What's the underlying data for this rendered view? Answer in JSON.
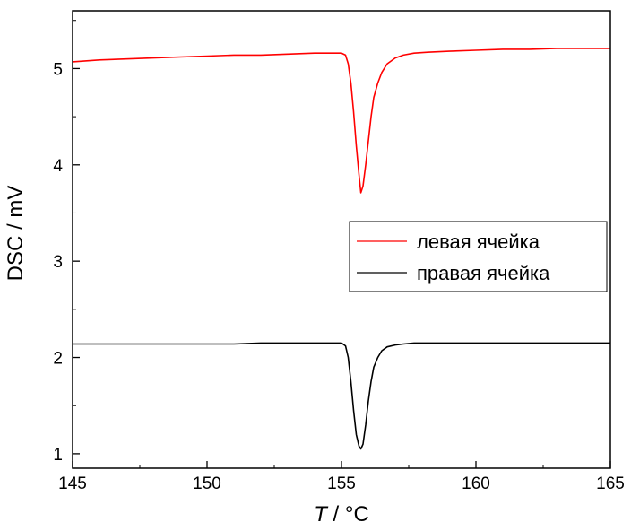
{
  "chart_data": {
    "type": "line",
    "xlabel_italic": "T",
    "xlabel_unit": " / °C",
    "ylabel": "DSC / mV",
    "xlim": [
      145,
      165
    ],
    "ylim": [
      0.85,
      5.6
    ],
    "x_ticks": [
      145,
      150,
      155,
      160,
      165
    ],
    "y_ticks": [
      1,
      2,
      3,
      4,
      5
    ],
    "legend_position": "center-right",
    "grid": false,
    "series": [
      {
        "name": "левая ячейка",
        "color": "#ff0000",
        "x": [
          145,
          146,
          147,
          148,
          149,
          150,
          151,
          152,
          153,
          154,
          154.6,
          155.0,
          155.15,
          155.25,
          155.35,
          155.45,
          155.55,
          155.65,
          155.72,
          155.8,
          155.9,
          156.0,
          156.1,
          156.2,
          156.35,
          156.5,
          156.7,
          157.0,
          157.3,
          157.7,
          158.2,
          159,
          160,
          161,
          162,
          163,
          164,
          165
        ],
        "y": [
          5.07,
          5.09,
          5.1,
          5.11,
          5.12,
          5.13,
          5.14,
          5.14,
          5.15,
          5.16,
          5.16,
          5.16,
          5.14,
          5.05,
          4.85,
          4.55,
          4.2,
          3.9,
          3.71,
          3.78,
          4.0,
          4.25,
          4.5,
          4.7,
          4.85,
          4.96,
          5.05,
          5.11,
          5.14,
          5.16,
          5.17,
          5.18,
          5.19,
          5.2,
          5.2,
          5.21,
          5.21,
          5.21
        ]
      },
      {
        "name": "правая ячейка",
        "color": "#000000",
        "x": [
          145,
          146,
          147,
          148,
          149,
          150,
          151,
          152,
          153,
          154,
          154.6,
          155.0,
          155.15,
          155.25,
          155.35,
          155.45,
          155.55,
          155.65,
          155.72,
          155.8,
          155.9,
          156.0,
          156.1,
          156.2,
          156.35,
          156.5,
          156.7,
          157.0,
          157.3,
          157.7,
          158.2,
          159,
          160,
          161,
          162,
          163,
          164,
          165
        ],
        "y": [
          2.14,
          2.14,
          2.14,
          2.14,
          2.14,
          2.14,
          2.14,
          2.15,
          2.15,
          2.15,
          2.15,
          2.15,
          2.12,
          2.0,
          1.75,
          1.45,
          1.2,
          1.08,
          1.05,
          1.1,
          1.3,
          1.55,
          1.75,
          1.9,
          2.0,
          2.07,
          2.11,
          2.13,
          2.14,
          2.15,
          2.15,
          2.15,
          2.15,
          2.15,
          2.15,
          2.15,
          2.15,
          2.15
        ]
      }
    ]
  }
}
